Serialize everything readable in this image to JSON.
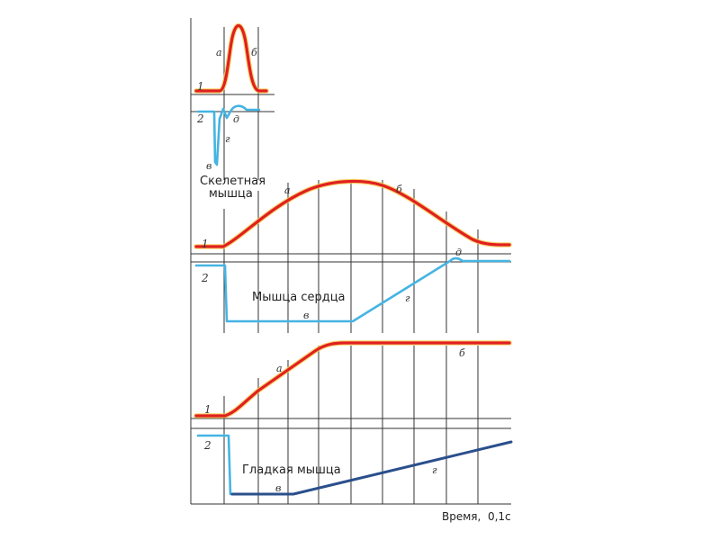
{
  "panels": {
    "skeletal": {
      "caption_line1": "Скелетная",
      "caption_line2": "мышца",
      "labels": {
        "a": "а",
        "b": "б",
        "v": "в",
        "g": "г",
        "d": "д"
      },
      "curve1_num": "1",
      "curve2_num": "2"
    },
    "heart": {
      "caption": "Мышца сердца",
      "labels": {
        "a": "а",
        "b": "б",
        "v": "в",
        "g": "г",
        "d": "д"
      },
      "curve1_num": "1",
      "curve2_num": "2"
    },
    "smooth": {
      "caption": "Гладкая мышца",
      "labels": {
        "a": "а",
        "b": "б",
        "v": "в",
        "g": "г"
      },
      "curve1_num": "1",
      "curve2_num": "2"
    }
  },
  "axis": {
    "x_label": "Время,  0,1с"
  },
  "colors": {
    "curve1": "#e02020",
    "curve2": "#45b4e3",
    "curve2_smooth": "#2a4f8c"
  }
}
